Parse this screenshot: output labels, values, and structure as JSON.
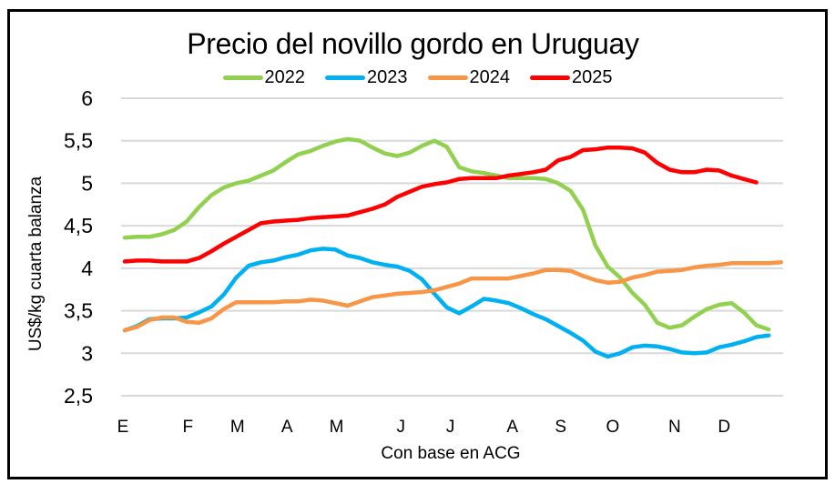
{
  "chart_data": {
    "type": "line",
    "title": "Precio del novillo gordo en Uruguay",
    "xlabel": "Con base en ACG",
    "ylabel": "US$/kg cuarta balanza",
    "ylim": [
      2.5,
      6
    ],
    "xlim": [
      0.7,
      54.3
    ],
    "yticks": [
      {
        "value": 6,
        "label": "6"
      },
      {
        "value": 5.5,
        "label": "5,5"
      },
      {
        "value": 5,
        "label": "5"
      },
      {
        "value": 4.5,
        "label": "4,5"
      },
      {
        "value": 4,
        "label": "4"
      },
      {
        "value": 3.5,
        "label": "3,5"
      },
      {
        "value": 3,
        "label": "3"
      },
      {
        "value": 2.5,
        "label": "2,5"
      }
    ],
    "xticks": [
      {
        "week": 0.85,
        "label": "E"
      },
      {
        "week": 6.1,
        "label": "F"
      },
      {
        "week": 10.1,
        "label": "M"
      },
      {
        "week": 14.1,
        "label": "A"
      },
      {
        "week": 18.1,
        "label": "M"
      },
      {
        "week": 23.3,
        "label": "J"
      },
      {
        "week": 27.3,
        "label": "J"
      },
      {
        "week": 32.3,
        "label": "A"
      },
      {
        "week": 36.2,
        "label": "S"
      },
      {
        "week": 40.4,
        "label": "O"
      },
      {
        "week": 45.4,
        "label": "N"
      },
      {
        "week": 49.4,
        "label": "D"
      }
    ],
    "grid": true,
    "legend_position": "top",
    "series": [
      {
        "name": "2022",
        "color": "#92D050",
        "values": [
          4.36,
          4.37,
          4.37,
          4.4,
          4.45,
          4.55,
          4.72,
          4.86,
          4.95,
          5.0,
          5.03,
          5.09,
          5.15,
          5.25,
          5.34,
          5.38,
          5.44,
          5.49,
          5.52,
          5.5,
          5.42,
          5.35,
          5.32,
          5.36,
          5.44,
          5.5,
          5.43,
          5.19,
          5.14,
          5.12,
          5.09,
          5.06,
          5.06,
          5.06,
          5.05,
          5.0,
          4.91,
          4.69,
          4.27,
          4.02,
          3.89,
          3.71,
          3.57,
          3.36,
          3.3,
          3.33,
          3.43,
          3.52,
          3.57,
          3.59,
          3.48,
          3.33,
          3.28
        ]
      },
      {
        "name": "2023",
        "color": "#00B0F0",
        "values": [
          3.27,
          3.32,
          3.4,
          3.41,
          3.41,
          3.42,
          3.48,
          3.55,
          3.69,
          3.89,
          4.03,
          4.07,
          4.09,
          4.13,
          4.16,
          4.21,
          4.23,
          4.22,
          4.15,
          4.12,
          4.07,
          4.04,
          4.02,
          3.97,
          3.87,
          3.7,
          3.54,
          3.47,
          3.55,
          3.64,
          3.62,
          3.59,
          3.53,
          3.46,
          3.4,
          3.32,
          3.24,
          3.15,
          3.02,
          2.96,
          3.0,
          3.07,
          3.09,
          3.08,
          3.05,
          3.01,
          3.0,
          3.01,
          3.07,
          3.1,
          3.14,
          3.19,
          3.21
        ]
      },
      {
        "name": "2024",
        "color": "#F79646",
        "values": [
          3.27,
          3.31,
          3.39,
          3.42,
          3.42,
          3.37,
          3.36,
          3.41,
          3.52,
          3.6,
          3.6,
          3.6,
          3.6,
          3.61,
          3.61,
          3.63,
          3.62,
          3.59,
          3.56,
          3.61,
          3.66,
          3.68,
          3.7,
          3.71,
          3.72,
          3.74,
          3.78,
          3.82,
          3.88,
          3.88,
          3.88,
          3.88,
          3.91,
          3.94,
          3.98,
          3.98,
          3.97,
          3.91,
          3.86,
          3.83,
          3.84,
          3.89,
          3.92,
          3.96,
          3.97,
          3.98,
          4.01,
          4.03,
          4.04,
          4.06,
          4.06,
          4.06,
          4.06,
          4.07
        ]
      },
      {
        "name": "2025",
        "color": "#FF0000",
        "values": [
          4.08,
          4.09,
          4.09,
          4.08,
          4.08,
          4.08,
          4.12,
          4.2,
          4.29,
          4.37,
          4.45,
          4.53,
          4.55,
          4.56,
          4.57,
          4.59,
          4.6,
          4.61,
          4.62,
          4.66,
          4.7,
          4.75,
          4.84,
          4.9,
          4.96,
          4.99,
          5.01,
          5.05,
          5.06,
          5.06,
          5.06,
          5.09,
          5.11,
          5.13,
          5.16,
          5.27,
          5.31,
          5.39,
          5.4,
          5.42,
          5.42,
          5.41,
          5.36,
          5.24,
          5.16,
          5.13,
          5.13,
          5.16,
          5.15,
          5.09,
          5.05,
          5.01
        ]
      }
    ]
  }
}
